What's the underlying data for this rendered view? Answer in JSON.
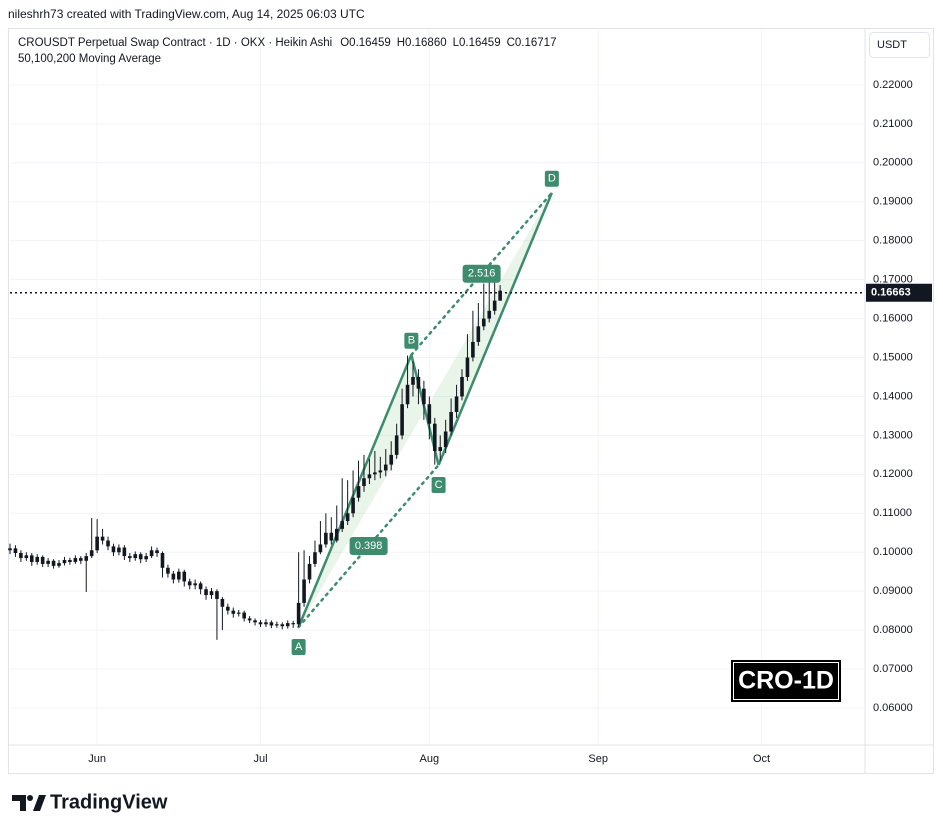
{
  "header": {
    "credit": "nileshrh73 created with TradingView.com, Aug 14, 2025 06:03 UTC"
  },
  "chart_data": {
    "type": "candlestick",
    "title": "CROUSDT Perpetual Swap Contract · 1D · OKX · Heikin Ashi",
    "ohlc_legend": [
      "O0.16459",
      "H0.16860",
      "L0.16459",
      "C0.16717"
    ],
    "indicator": "50,100,200 Moving Average",
    "currency": "USDT",
    "color": "#131722",
    "x": [
      0,
      1,
      2,
      3,
      4,
      5,
      6,
      7,
      8,
      9,
      10,
      11,
      12,
      13,
      14,
      15,
      16,
      17,
      18,
      19,
      20,
      21,
      22,
      23,
      24,
      25,
      26,
      27,
      28,
      29,
      30,
      31,
      32,
      33,
      34,
      35,
      36,
      37,
      38,
      39,
      40,
      41,
      42,
      43,
      44,
      45,
      46,
      47,
      48,
      49,
      50,
      51,
      52,
      53,
      54,
      55,
      56,
      57,
      58,
      59,
      60,
      61,
      62,
      63,
      64,
      65,
      66,
      67,
      68,
      69,
      70,
      71,
      72,
      73,
      74,
      75,
      76,
      77,
      78,
      79,
      80,
      81,
      82,
      83,
      84,
      85,
      86,
      87,
      88,
      89,
      90
    ],
    "open": [
      0.1005,
      0.101,
      0.0998,
      0.0985,
      0.0992,
      0.0975,
      0.0988,
      0.097,
      0.0978,
      0.0965,
      0.0972,
      0.098,
      0.0975,
      0.0985,
      0.0978,
      0.099,
      0.1005,
      0.104,
      0.103,
      0.1015,
      0.1,
      0.1012,
      0.099,
      0.0985,
      0.0995,
      0.0982,
      0.099,
      0.1005,
      0.0998,
      0.096,
      0.0945,
      0.093,
      0.095,
      0.0925,
      0.0915,
      0.092,
      0.0905,
      0.089,
      0.09,
      0.088,
      0.086,
      0.085,
      0.0842,
      0.0845,
      0.083,
      0.0825,
      0.082,
      0.0815,
      0.082,
      0.0812,
      0.0815,
      0.081,
      0.0818,
      0.0815,
      0.087,
      0.093,
      0.097,
      0.1,
      0.102,
      0.105,
      0.103,
      0.106,
      0.108,
      0.11,
      0.114,
      0.117,
      0.119,
      0.12,
      0.1205,
      0.121,
      0.1225,
      0.125,
      0.13,
      0.138,
      0.143,
      0.145,
      0.142,
      0.138,
      0.133,
      0.126,
      0.127,
      0.131,
      0.136,
      0.14,
      0.145,
      0.15,
      0.154,
      0.158,
      0.16,
      0.162,
      0.16459
    ],
    "high": [
      0.1022,
      0.1018,
      0.1005,
      0.1,
      0.0998,
      0.0995,
      0.0992,
      0.0985,
      0.0982,
      0.098,
      0.0988,
      0.0986,
      0.0992,
      0.099,
      0.0998,
      0.1088,
      0.1085,
      0.106,
      0.104,
      0.1022,
      0.102,
      0.1018,
      0.0998,
      0.1002,
      0.1,
      0.0998,
      0.1015,
      0.1012,
      0.1002,
      0.0968,
      0.0952,
      0.0958,
      0.0955,
      0.0932,
      0.093,
      0.0925,
      0.0912,
      0.0908,
      0.0905,
      0.0885,
      0.0868,
      0.0858,
      0.0852,
      0.085,
      0.0836,
      0.083,
      0.0826,
      0.0828,
      0.0825,
      0.0822,
      0.082,
      0.0825,
      0.0824,
      0.1,
      0.1005,
      0.099,
      0.103,
      0.108,
      0.11,
      0.109,
      0.112,
      0.119,
      0.1185,
      0.121,
      0.1235,
      0.125,
      0.124,
      0.126,
      0.1245,
      0.1265,
      0.1285,
      0.133,
      0.142,
      0.1505,
      0.149,
      0.147,
      0.144,
      0.14,
      0.1345,
      0.13,
      0.134,
      0.1395,
      0.143,
      0.147,
      0.156,
      0.162,
      0.164,
      0.169,
      0.172,
      0.1705,
      0.1686
    ],
    "low": [
      0.0995,
      0.0988,
      0.0975,
      0.0978,
      0.0965,
      0.0968,
      0.0962,
      0.0962,
      0.0958,
      0.096,
      0.0966,
      0.0968,
      0.097,
      0.097,
      0.0898,
      0.0985,
      0.0998,
      0.102,
      0.1005,
      0.099,
      0.0992,
      0.098,
      0.0975,
      0.0978,
      0.0972,
      0.0975,
      0.0985,
      0.0988,
      0.0935,
      0.0935,
      0.092,
      0.0922,
      0.0912,
      0.0905,
      0.0905,
      0.0892,
      0.0878,
      0.088,
      0.0775,
      0.08,
      0.084,
      0.0832,
      0.0835,
      0.0822,
      0.0818,
      0.0812,
      0.0808,
      0.0808,
      0.0805,
      0.0806,
      0.0802,
      0.0804,
      0.0806,
      0.0808,
      0.086,
      0.092,
      0.0962,
      0.0995,
      0.1012,
      0.102,
      0.1025,
      0.1052,
      0.107,
      0.109,
      0.113,
      0.1155,
      0.1175,
      0.1185,
      0.119,
      0.1195,
      0.121,
      0.124,
      0.129,
      0.137,
      0.14,
      0.138,
      0.134,
      0.129,
      0.1225,
      0.1235,
      0.1255,
      0.13,
      0.1345,
      0.139,
      0.144,
      0.149,
      0.153,
      0.157,
      0.159,
      0.161,
      0.16459
    ],
    "close": [
      0.101,
      0.0998,
      0.0985,
      0.0992,
      0.0975,
      0.0988,
      0.097,
      0.0978,
      0.0965,
      0.0972,
      0.098,
      0.0975,
      0.0985,
      0.0978,
      0.099,
      0.1005,
      0.104,
      0.103,
      0.1015,
      0.1,
      0.1012,
      0.099,
      0.0985,
      0.0995,
      0.0982,
      0.099,
      0.1005,
      0.0998,
      0.096,
      0.0945,
      0.093,
      0.095,
      0.0925,
      0.0915,
      0.092,
      0.0905,
      0.089,
      0.09,
      0.088,
      0.086,
      0.085,
      0.0842,
      0.0845,
      0.083,
      0.0825,
      0.082,
      0.0815,
      0.082,
      0.0812,
      0.0815,
      0.081,
      0.0818,
      0.0815,
      0.087,
      0.093,
      0.097,
      0.1,
      0.102,
      0.105,
      0.103,
      0.106,
      0.108,
      0.11,
      0.114,
      0.117,
      0.119,
      0.12,
      0.1205,
      0.121,
      0.1225,
      0.125,
      0.13,
      0.138,
      0.143,
      0.145,
      0.142,
      0.138,
      0.133,
      0.126,
      0.127,
      0.131,
      0.136,
      0.14,
      0.145,
      0.15,
      0.154,
      0.158,
      0.16,
      0.162,
      0.1646,
      0.16717
    ],
    "xlim": [
      0,
      157
    ],
    "xticks": [
      {
        "value": 16,
        "label": "Jun"
      },
      {
        "value": 46,
        "label": "Jul"
      },
      {
        "value": 77,
        "label": "Aug"
      },
      {
        "value": 108,
        "label": "Sep"
      },
      {
        "value": 138,
        "label": "Oct"
      }
    ],
    "ylim": [
      0.0505,
      0.2341
    ],
    "yticks": [
      {
        "value": 0.06,
        "label": "0.06000"
      },
      {
        "value": 0.07,
        "label": "0.07000"
      },
      {
        "value": 0.08,
        "label": "0.08000"
      },
      {
        "value": 0.09,
        "label": "0.09000"
      },
      {
        "value": 0.1,
        "label": "0.10000"
      },
      {
        "value": 0.11,
        "label": "0.11000"
      },
      {
        "value": 0.12,
        "label": "0.12000"
      },
      {
        "value": 0.13,
        "label": "0.13000"
      },
      {
        "value": 0.14,
        "label": "0.14000"
      },
      {
        "value": 0.15,
        "label": "0.15000"
      },
      {
        "value": 0.16,
        "label": "0.16000"
      },
      {
        "value": 0.17,
        "label": "0.17000"
      },
      {
        "value": 0.18,
        "label": "0.18000"
      },
      {
        "value": 0.19,
        "label": "0.19000"
      },
      {
        "value": 0.2,
        "label": "0.20000"
      },
      {
        "value": 0.21,
        "label": "0.21000"
      },
      {
        "value": 0.22,
        "label": "0.22000"
      }
    ],
    "grid": true,
    "last_price": 0.16663,
    "pattern": {
      "color": "#3d8c6e",
      "points": [
        {
          "label": "A",
          "x": 53,
          "y": 0.0808
        },
        {
          "label": "B",
          "x": 73.7,
          "y": 0.1507
        },
        {
          "label": "C",
          "x": 78.7,
          "y": 0.1224
        },
        {
          "label": "D",
          "x": 99.5,
          "y": 0.1923
        }
      ],
      "ratios": [
        0.398,
        2.516
      ]
    },
    "watermark": "CRO-1D"
  },
  "footer": {
    "logo": "TradingView"
  }
}
